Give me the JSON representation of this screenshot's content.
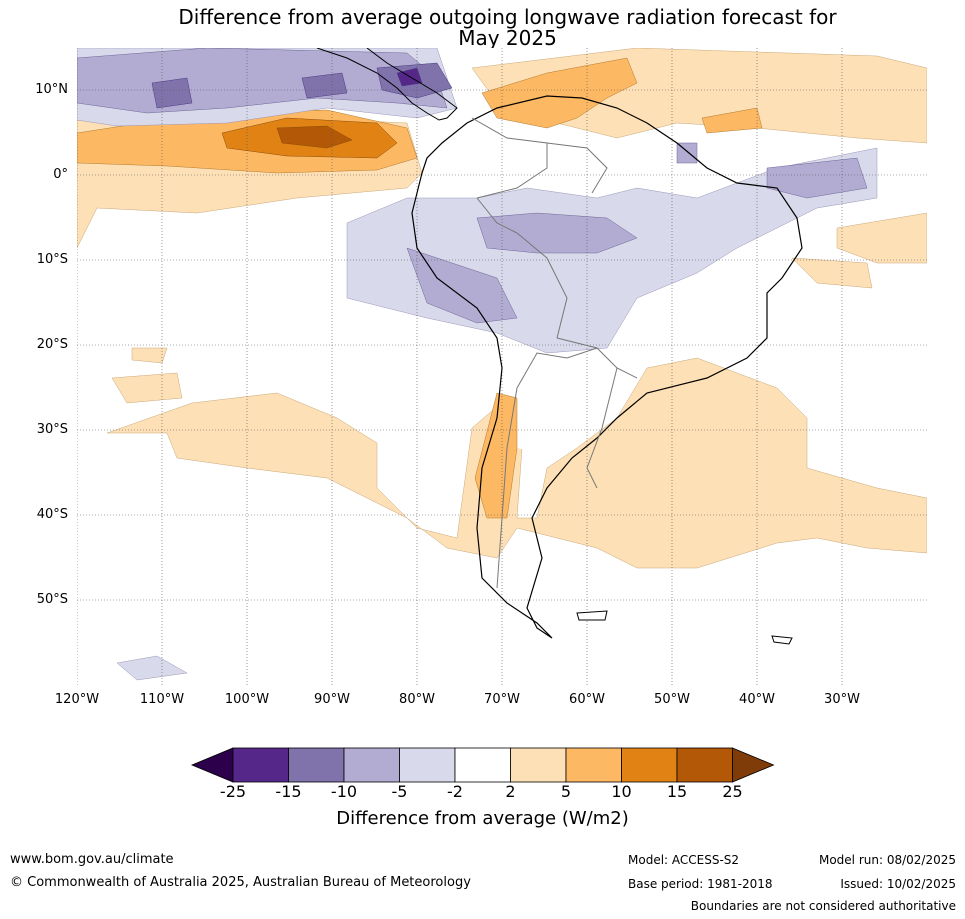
{
  "title_line1": "Difference from average outgoing longwave radiation forecast for",
  "title_line2": "May 2025",
  "lat_labels": [
    "10°N",
    "0°",
    "10°S",
    "20°S",
    "30°S",
    "40°S",
    "50°S"
  ],
  "lon_labels": [
    "120°W",
    "110°W",
    "100°W",
    "90°W",
    "80°W",
    "70°W",
    "60°W",
    "50°W",
    "40°W",
    "30°W"
  ],
  "colorbar": {
    "ticks": [
      "-25",
      "-15",
      "-10",
      "-5",
      "-2",
      "2",
      "5",
      "10",
      "15",
      "25"
    ],
    "colors": [
      "#2d004b",
      "#542788",
      "#8073ac",
      "#b2abd2",
      "#d8daeb",
      "#ffffff",
      "#fee0b6",
      "#fdb863",
      "#e08214",
      "#b35806",
      "#7f3b08"
    ],
    "label": "Difference from average (W/m2)"
  },
  "footer": {
    "website": "www.bom.gov.au/climate",
    "copyright": "© Commonwealth of Australia 2025, Australian Bureau of Meteorology",
    "model": "Model: ACCESS-S2",
    "model_run": "Model run: 08/02/2025",
    "base_period": "Base period: 1981-2018",
    "issued": "Issued: 10/02/2025",
    "disclaimer": "Boundaries are not considered authoritative"
  }
}
